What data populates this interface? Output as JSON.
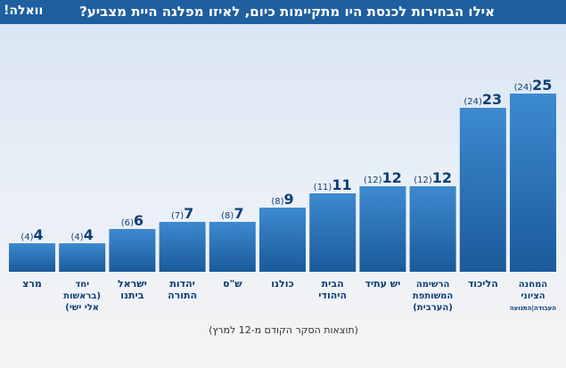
{
  "header": {
    "title": "אילו הבחירות לכנסת היו מתקיימות כיום, לאיזו מפלגה היית מצביע?",
    "logo": "וואלה!"
  },
  "footnote": "(תוצאות הסקר הקודם מ-12 למרץ)",
  "colors": {
    "header": "#1e5fa0",
    "bar_top": "#3a86cc",
    "bar_bottom": "#1a5a9a",
    "label": "#0d3f78"
  },
  "chart_data": {
    "type": "bar",
    "title": "אילו הבחירות לכנסת היו מתקיימות כיום, לאיזו מפלגה היית מצביע?",
    "categories": [
      "מרצ",
      "יחד (בראשות אלי ישי)",
      "ישראל ביתנו",
      "יהדות התורה",
      "ש\"ס",
      "כולנו",
      "הבית היהודי",
      "יש עתיד",
      "הרשימה המשותפת (הערבית)",
      "הליכוד",
      "המחנה הציוני"
    ],
    "category_lines": [
      [
        "מרצ"
      ],
      [
        "יחד",
        "(בראשות",
        "אלי ישי)"
      ],
      [
        "ישראל",
        "ביתנו"
      ],
      [
        "יהדות",
        "התורה"
      ],
      [
        "ש\"ס"
      ],
      [
        "כולנו"
      ],
      [
        "הבית",
        "היהודי"
      ],
      [
        "יש עתיד"
      ],
      [
        "הרשימה",
        "המשותפת",
        "(הערבית)"
      ],
      [
        "הליכוד"
      ],
      [
        "המחנה",
        "הציוני",
        "העבודה|התנועה"
      ]
    ],
    "values": [
      4,
      4,
      6,
      7,
      7,
      9,
      11,
      12,
      12,
      23,
      25
    ],
    "previous": [
      4,
      4,
      6,
      7,
      8,
      8,
      11,
      12,
      12,
      24,
      24
    ],
    "previous_labels": [
      "(4)",
      "(4)",
      "(6)",
      "(7)",
      "(8)",
      "(8)",
      "(11)",
      "(12)",
      "(12)",
      "(24)",
      "(24)"
    ],
    "xlabel": "",
    "ylabel": "",
    "ylim": [
      0,
      25
    ],
    "grid": false,
    "legend": "none"
  }
}
